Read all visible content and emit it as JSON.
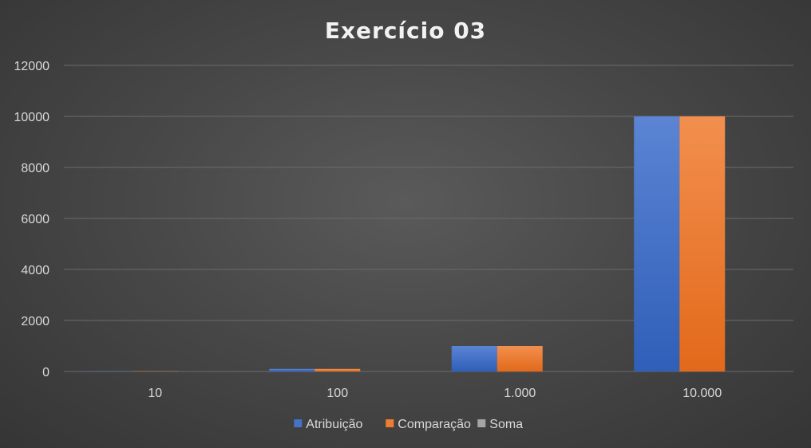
{
  "chart_data": {
    "type": "bar",
    "title": "Exercício 03",
    "categories": [
      "10",
      "100",
      "1.000",
      "10.000"
    ],
    "series": [
      {
        "name": "Atribuição",
        "values": [
          10,
          100,
          1000,
          10000
        ],
        "color": "#4472c4"
      },
      {
        "name": "Comparação",
        "values": [
          10,
          100,
          1000,
          10000
        ],
        "color": "#ed7d31"
      },
      {
        "name": "Soma",
        "values": [
          0,
          0,
          0,
          0
        ],
        "color": "#a5a5a5"
      }
    ],
    "ylim": [
      0,
      12000
    ],
    "yticks": [
      "0",
      "2000",
      "4000",
      "6000",
      "8000",
      "10000",
      "12000"
    ],
    "grid": true,
    "legend_position": "bottom"
  }
}
